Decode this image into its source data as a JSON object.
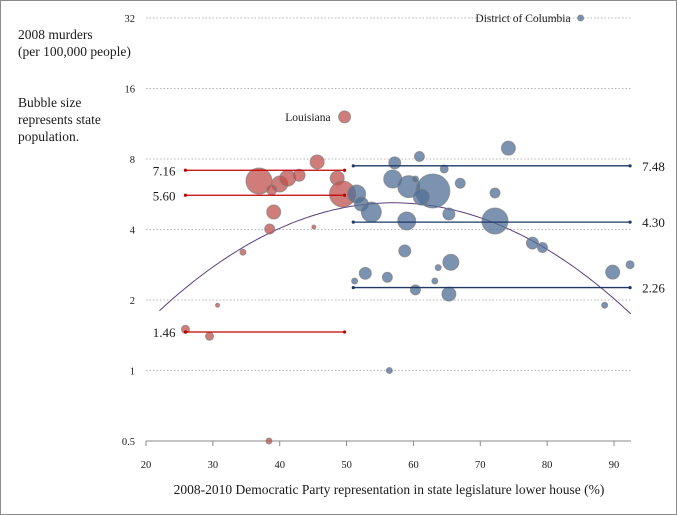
{
  "chart_data": {
    "type": "scatter",
    "subtype": "bubble",
    "ylabel_lines": [
      "2008 murders",
      "(per 100,000 people)"
    ],
    "note_lines": [
      "Bubble size",
      "represents state",
      "population."
    ],
    "xlabel": "2008-2010 Democratic Party representation in state legislature lower house (%)",
    "x_ticks": [
      "20",
      "30",
      "40",
      "50",
      "60",
      "70",
      "80",
      "90"
    ],
    "y_ticks": [
      "0.5",
      "1",
      "2",
      "4",
      "8",
      "16",
      "32"
    ],
    "xlim": [
      20,
      92.5
    ],
    "ylim": [
      0.5,
      32
    ],
    "y_scale": "log2",
    "grid": "horizontal dotted",
    "colors": {
      "republican": "#c0504d",
      "democratic": "#4f6d96",
      "red_line": "#c00000",
      "blue_line": "#1f3864",
      "trend": "#5b3f7f"
    },
    "series": [
      {
        "color_key": "republican",
        "points": [
          {
            "x": 49.7,
            "y": 12.1,
            "size": 6,
            "label": "Louisiana"
          },
          {
            "x": 45.6,
            "y": 7.77,
            "size": 7
          },
          {
            "x": 36.9,
            "y": 6.44,
            "size": 13
          },
          {
            "x": 40.0,
            "y": 6.26,
            "size": 8
          },
          {
            "x": 41.2,
            "y": 6.63,
            "size": 8
          },
          {
            "x": 42.9,
            "y": 6.82,
            "size": 6
          },
          {
            "x": 38.8,
            "y": 5.9,
            "size": 5
          },
          {
            "x": 48.6,
            "y": 6.63,
            "size": 7
          },
          {
            "x": 49.4,
            "y": 5.67,
            "size": 13
          },
          {
            "x": 39.1,
            "y": 4.75,
            "size": 7
          },
          {
            "x": 38.5,
            "y": 4.02,
            "size": 5
          },
          {
            "x": 45.1,
            "y": 4.1,
            "size": 2
          },
          {
            "x": 34.5,
            "y": 3.2,
            "size": 3
          },
          {
            "x": 30.7,
            "y": 1.9,
            "size": 2
          },
          {
            "x": 25.9,
            "y": 1.5,
            "size": 4
          },
          {
            "x": 29.5,
            "y": 1.4,
            "size": 4
          },
          {
            "x": 38.4,
            "y": 0.5,
            "size": 3
          }
        ]
      },
      {
        "color_key": "democratic",
        "points": [
          {
            "x": 85.0,
            "y": 32,
            "size": 3,
            "label": "District of Columbia"
          },
          {
            "x": 74.2,
            "y": 8.9,
            "size": 7
          },
          {
            "x": 60.9,
            "y": 8.2,
            "size": 5
          },
          {
            "x": 57.2,
            "y": 7.7,
            "size": 6
          },
          {
            "x": 64.6,
            "y": 7.25,
            "size": 4
          },
          {
            "x": 56.9,
            "y": 6.57,
            "size": 9
          },
          {
            "x": 59.3,
            "y": 6.1,
            "size": 11
          },
          {
            "x": 62.9,
            "y": 5.84,
            "size": 17
          },
          {
            "x": 67.0,
            "y": 6.3,
            "size": 5
          },
          {
            "x": 60.3,
            "y": 6.57,
            "size": 3
          },
          {
            "x": 61.2,
            "y": 5.5,
            "size": 8
          },
          {
            "x": 72.2,
            "y": 5.73,
            "size": 5
          },
          {
            "x": 51.5,
            "y": 5.67,
            "size": 9
          },
          {
            "x": 52.2,
            "y": 5.14,
            "size": 7
          },
          {
            "x": 53.7,
            "y": 4.75,
            "size": 10
          },
          {
            "x": 59.0,
            "y": 4.35,
            "size": 9
          },
          {
            "x": 65.3,
            "y": 4.66,
            "size": 6
          },
          {
            "x": 72.2,
            "y": 4.35,
            "size": 13
          },
          {
            "x": 77.8,
            "y": 3.5,
            "size": 6
          },
          {
            "x": 79.3,
            "y": 3.35,
            "size": 5
          },
          {
            "x": 58.7,
            "y": 3.24,
            "size": 6
          },
          {
            "x": 65.6,
            "y": 2.9,
            "size": 8
          },
          {
            "x": 52.8,
            "y": 2.6,
            "size": 6
          },
          {
            "x": 56.1,
            "y": 2.5,
            "size": 5
          },
          {
            "x": 63.7,
            "y": 2.75,
            "size": 3
          },
          {
            "x": 63.2,
            "y": 2.41,
            "size": 3
          },
          {
            "x": 51.2,
            "y": 2.41,
            "size": 3
          },
          {
            "x": 60.3,
            "y": 2.21,
            "size": 5
          },
          {
            "x": 65.3,
            "y": 2.12,
            "size": 7
          },
          {
            "x": 89.8,
            "y": 2.63,
            "size": 7
          },
          {
            "x": 92.4,
            "y": 2.83,
            "size": 4
          },
          {
            "x": 88.6,
            "y": 1.9,
            "size": 3
          },
          {
            "x": 56.4,
            "y": 1.0,
            "size": 3
          }
        ]
      }
    ],
    "reference_lines": [
      {
        "color_key": "red_line",
        "y": 7.16,
        "label": "7.16",
        "x_range": [
          25.9,
          49.7
        ],
        "label_side": "left"
      },
      {
        "color_key": "red_line",
        "y": 5.6,
        "label": "5.60",
        "x_range": [
          25.9,
          49.7
        ],
        "label_side": "left"
      },
      {
        "color_key": "red_line",
        "y": 1.46,
        "label": "1.46",
        "x_range": [
          25.9,
          49.7
        ],
        "label_side": "left"
      },
      {
        "color_key": "blue_line",
        "y": 7.48,
        "label": "7.48",
        "x_range": [
          51.0,
          92.4
        ],
        "label_side": "right"
      },
      {
        "color_key": "blue_line",
        "y": 4.3,
        "label": "4.30",
        "x_range": [
          51.0,
          92.4
        ],
        "label_side": "right"
      },
      {
        "color_key": "blue_line",
        "y": 2.26,
        "label": "2.26",
        "x_range": [
          51.0,
          92.4
        ],
        "label_side": "right"
      }
    ],
    "trend": {
      "type": "quadratic in log scale",
      "peak_x": 57,
      "peak_y": 5.2,
      "x_range": [
        22,
        92.7
      ],
      "end_y": 1.8
    }
  }
}
